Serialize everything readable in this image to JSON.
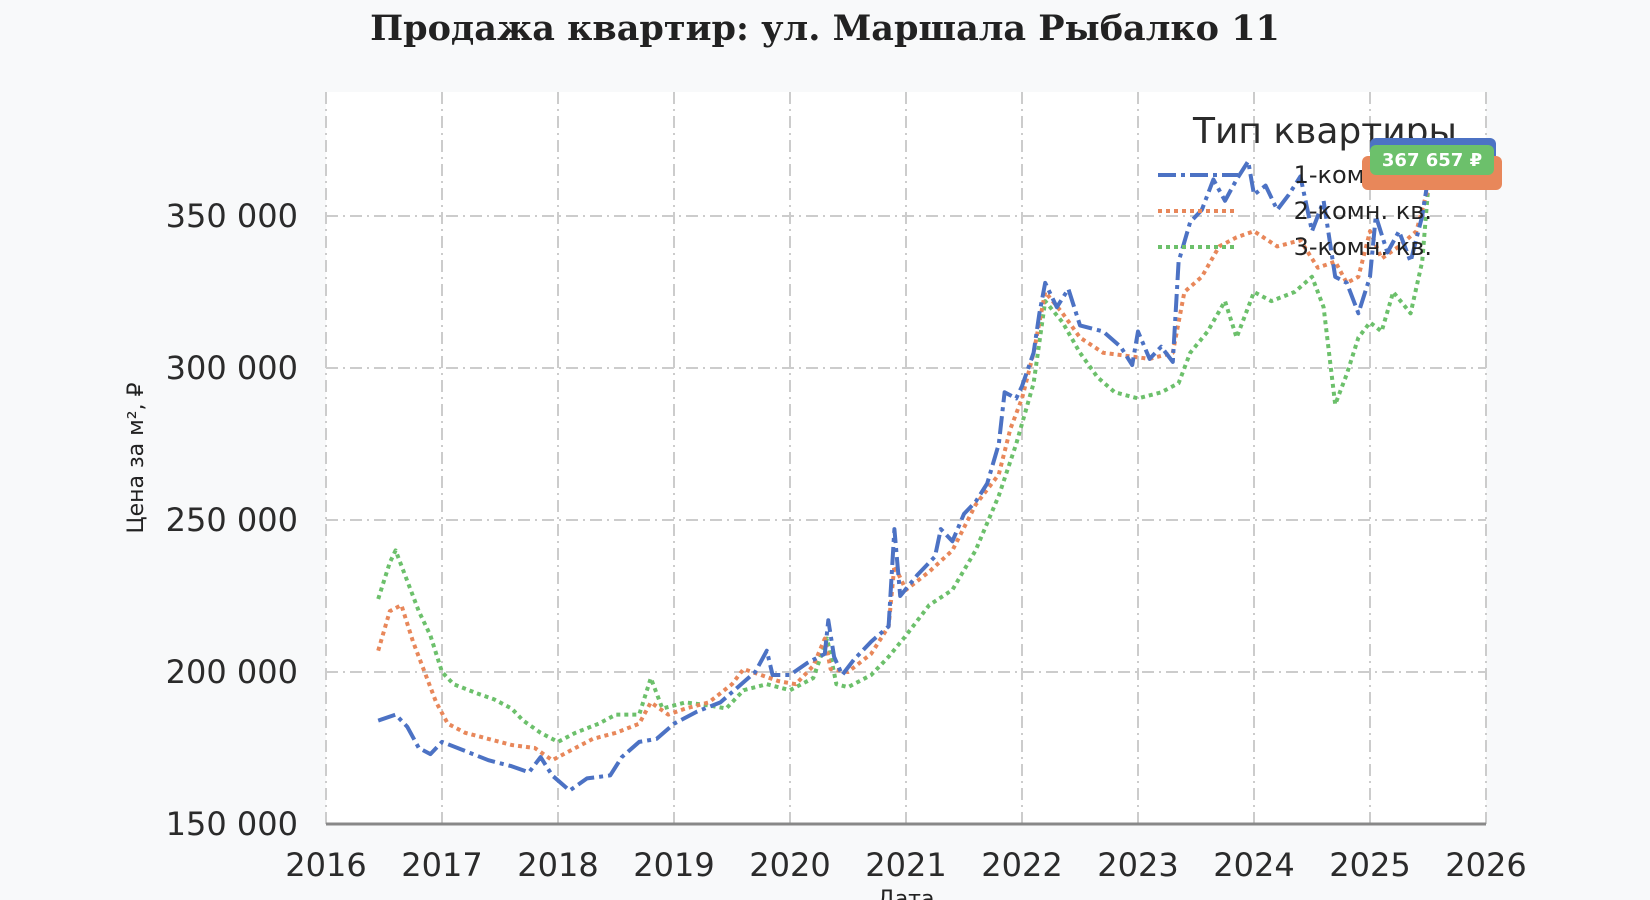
{
  "chart_data": {
    "type": "line",
    "title": "Продажа квартир: ул. Маршала Рыбалко 11",
    "xlabel": "Дата",
    "ylabel": "Цена за м², ₽",
    "x_ticks": [
      "2016",
      "2017",
      "2018",
      "2019",
      "2020",
      "2021",
      "2022",
      "2023",
      "2024",
      "2025",
      "2026"
    ],
    "y_ticks": [
      "150 000",
      "200 000",
      "250 000",
      "300 000",
      "350 000"
    ],
    "xlim": [
      2016.0,
      2026.0
    ],
    "ylim": [
      150000,
      390000
    ],
    "grid": true,
    "legend": {
      "title": "Тип квартиры",
      "position": "top-right"
    },
    "series": [
      {
        "name": "1-комн. кв.",
        "color": "#4c72c4",
        "style": "dashdot",
        "points": [
          [
            2016.45,
            184000
          ],
          [
            2016.6,
            186000
          ],
          [
            2016.7,
            182000
          ],
          [
            2016.8,
            175000
          ],
          [
            2016.9,
            173000
          ],
          [
            2017.0,
            177000
          ],
          [
            2017.2,
            174000
          ],
          [
            2017.4,
            171000
          ],
          [
            2017.6,
            169000
          ],
          [
            2017.75,
            167000
          ],
          [
            2017.85,
            172000
          ],
          [
            2017.95,
            166000
          ],
          [
            2018.1,
            161000
          ],
          [
            2018.25,
            165000
          ],
          [
            2018.45,
            166000
          ],
          [
            2018.55,
            172000
          ],
          [
            2018.7,
            177000
          ],
          [
            2018.85,
            178000
          ],
          [
            2019.0,
            183000
          ],
          [
            2019.2,
            187000
          ],
          [
            2019.4,
            190000
          ],
          [
            2019.55,
            195000
          ],
          [
            2019.7,
            200000
          ],
          [
            2019.8,
            207000
          ],
          [
            2019.85,
            199000
          ],
          [
            2020.0,
            199000
          ],
          [
            2020.15,
            203000
          ],
          [
            2020.3,
            206000
          ],
          [
            2020.33,
            217000
          ],
          [
            2020.38,
            205000
          ],
          [
            2020.45,
            199000
          ],
          [
            2020.55,
            204000
          ],
          [
            2020.7,
            210000
          ],
          [
            2020.85,
            215000
          ],
          [
            2020.9,
            247000
          ],
          [
            2020.95,
            225000
          ],
          [
            2021.1,
            232000
          ],
          [
            2021.25,
            238000
          ],
          [
            2021.3,
            247000
          ],
          [
            2021.4,
            243000
          ],
          [
            2021.5,
            252000
          ],
          [
            2021.6,
            256000
          ],
          [
            2021.7,
            262000
          ],
          [
            2021.8,
            275000
          ],
          [
            2021.85,
            292000
          ],
          [
            2021.95,
            290000
          ],
          [
            2022.0,
            294000
          ],
          [
            2022.1,
            305000
          ],
          [
            2022.15,
            318000
          ],
          [
            2022.2,
            328000
          ],
          [
            2022.3,
            320000
          ],
          [
            2022.4,
            326000
          ],
          [
            2022.5,
            314000
          ],
          [
            2022.7,
            312000
          ],
          [
            2022.85,
            307000
          ],
          [
            2022.95,
            301000
          ],
          [
            2023.0,
            312000
          ],
          [
            2023.1,
            303000
          ],
          [
            2023.2,
            307000
          ],
          [
            2023.3,
            302000
          ],
          [
            2023.35,
            335000
          ],
          [
            2023.45,
            348000
          ],
          [
            2023.55,
            352000
          ],
          [
            2023.65,
            362000
          ],
          [
            2023.75,
            355000
          ],
          [
            2023.85,
            362000
          ],
          [
            2023.95,
            368000
          ],
          [
            2024.0,
            357000
          ],
          [
            2024.1,
            360000
          ],
          [
            2024.2,
            352000
          ],
          [
            2024.3,
            357000
          ],
          [
            2024.4,
            363000
          ],
          [
            2024.5,
            345000
          ],
          [
            2024.6,
            355000
          ],
          [
            2024.7,
            330000
          ],
          [
            2024.8,
            328000
          ],
          [
            2024.9,
            318000
          ],
          [
            2025.0,
            330000
          ],
          [
            2025.05,
            350000
          ],
          [
            2025.15,
            338000
          ],
          [
            2025.25,
            345000
          ],
          [
            2025.35,
            335000
          ],
          [
            2025.45,
            350000
          ],
          [
            2025.52,
            367000
          ]
        ]
      },
      {
        "name": "2-комн. кв.",
        "color": "#e8875a",
        "style": "dotted",
        "points": [
          [
            2016.45,
            207000
          ],
          [
            2016.55,
            220000
          ],
          [
            2016.65,
            222000
          ],
          [
            2016.75,
            210000
          ],
          [
            2016.85,
            200000
          ],
          [
            2016.95,
            190000
          ],
          [
            2017.05,
            183000
          ],
          [
            2017.2,
            180000
          ],
          [
            2017.4,
            178000
          ],
          [
            2017.6,
            176000
          ],
          [
            2017.8,
            175000
          ],
          [
            2017.95,
            171000
          ],
          [
            2018.1,
            174000
          ],
          [
            2018.3,
            178000
          ],
          [
            2018.5,
            180000
          ],
          [
            2018.7,
            183000
          ],
          [
            2018.8,
            190000
          ],
          [
            2018.95,
            186000
          ],
          [
            2019.1,
            188000
          ],
          [
            2019.3,
            190000
          ],
          [
            2019.5,
            196000
          ],
          [
            2019.6,
            201000
          ],
          [
            2019.75,
            199000
          ],
          [
            2019.9,
            197000
          ],
          [
            2020.05,
            196000
          ],
          [
            2020.2,
            202000
          ],
          [
            2020.3,
            211000
          ],
          [
            2020.35,
            201000
          ],
          [
            2020.5,
            200000
          ],
          [
            2020.7,
            206000
          ],
          [
            2020.85,
            215000
          ],
          [
            2020.9,
            235000
          ],
          [
            2021.0,
            227000
          ],
          [
            2021.2,
            233000
          ],
          [
            2021.4,
            240000
          ],
          [
            2021.6,
            255000
          ],
          [
            2021.8,
            265000
          ],
          [
            2021.9,
            280000
          ],
          [
            2022.0,
            290000
          ],
          [
            2022.1,
            305000
          ],
          [
            2022.2,
            325000
          ],
          [
            2022.35,
            318000
          ],
          [
            2022.5,
            310000
          ],
          [
            2022.7,
            305000
          ],
          [
            2022.9,
            304000
          ],
          [
            2023.1,
            303000
          ],
          [
            2023.3,
            305000
          ],
          [
            2023.4,
            325000
          ],
          [
            2023.55,
            330000
          ],
          [
            2023.7,
            340000
          ],
          [
            2023.85,
            343000
          ],
          [
            2024.0,
            345000
          ],
          [
            2024.2,
            340000
          ],
          [
            2024.4,
            342000
          ],
          [
            2024.55,
            333000
          ],
          [
            2024.7,
            335000
          ],
          [
            2024.8,
            328000
          ],
          [
            2024.9,
            330000
          ],
          [
            2025.0,
            345000
          ],
          [
            2025.1,
            336000
          ],
          [
            2025.25,
            340000
          ],
          [
            2025.4,
            345000
          ],
          [
            2025.52,
            362000
          ]
        ]
      },
      {
        "name": "3-комн. кв.",
        "color": "#6cc06b",
        "style": "dotted",
        "points": [
          [
            2016.45,
            224000
          ],
          [
            2016.55,
            236000
          ],
          [
            2016.6,
            240000
          ],
          [
            2016.7,
            230000
          ],
          [
            2016.8,
            220000
          ],
          [
            2016.9,
            212000
          ],
          [
            2017.0,
            200000
          ],
          [
            2017.1,
            196000
          ],
          [
            2017.3,
            193000
          ],
          [
            2017.45,
            191000
          ],
          [
            2017.6,
            188000
          ],
          [
            2017.7,
            184000
          ],
          [
            2017.85,
            180000
          ],
          [
            2018.0,
            177000
          ],
          [
            2018.15,
            180000
          ],
          [
            2018.35,
            183000
          ],
          [
            2018.5,
            186000
          ],
          [
            2018.7,
            186000
          ],
          [
            2018.8,
            198000
          ],
          [
            2018.9,
            188000
          ],
          [
            2019.1,
            190000
          ],
          [
            2019.3,
            189000
          ],
          [
            2019.45,
            188000
          ],
          [
            2019.6,
            194000
          ],
          [
            2019.8,
            196000
          ],
          [
            2020.0,
            194000
          ],
          [
            2020.2,
            198000
          ],
          [
            2020.32,
            211000
          ],
          [
            2020.4,
            196000
          ],
          [
            2020.5,
            195000
          ],
          [
            2020.7,
            199000
          ],
          [
            2020.85,
            205000
          ],
          [
            2021.0,
            212000
          ],
          [
            2021.2,
            222000
          ],
          [
            2021.4,
            227000
          ],
          [
            2021.6,
            240000
          ],
          [
            2021.8,
            258000
          ],
          [
            2021.95,
            275000
          ],
          [
            2022.1,
            295000
          ],
          [
            2022.2,
            322000
          ],
          [
            2022.35,
            315000
          ],
          [
            2022.5,
            305000
          ],
          [
            2022.65,
            297000
          ],
          [
            2022.8,
            292000
          ],
          [
            2023.0,
            290000
          ],
          [
            2023.2,
            292000
          ],
          [
            2023.35,
            295000
          ],
          [
            2023.45,
            305000
          ],
          [
            2023.6,
            312000
          ],
          [
            2023.75,
            322000
          ],
          [
            2023.85,
            310000
          ],
          [
            2024.0,
            325000
          ],
          [
            2024.15,
            322000
          ],
          [
            2024.35,
            325000
          ],
          [
            2024.5,
            330000
          ],
          [
            2024.6,
            320000
          ],
          [
            2024.7,
            288000
          ],
          [
            2024.8,
            298000
          ],
          [
            2024.9,
            310000
          ],
          [
            2025.0,
            315000
          ],
          [
            2025.1,
            312000
          ],
          [
            2025.2,
            325000
          ],
          [
            2025.35,
            318000
          ],
          [
            2025.45,
            335000
          ],
          [
            2025.52,
            367657
          ]
        ]
      }
    ],
    "end_labels": [
      {
        "series": "1-комн. кв.",
        "text": "",
        "color": "#4c72c4"
      },
      {
        "series": "2-комн. кв.",
        "text": "",
        "color": "#e8875a"
      },
      {
        "series": "3-комн. кв.",
        "text": "367 657 ₽",
        "color": "#6cc06b"
      }
    ]
  }
}
